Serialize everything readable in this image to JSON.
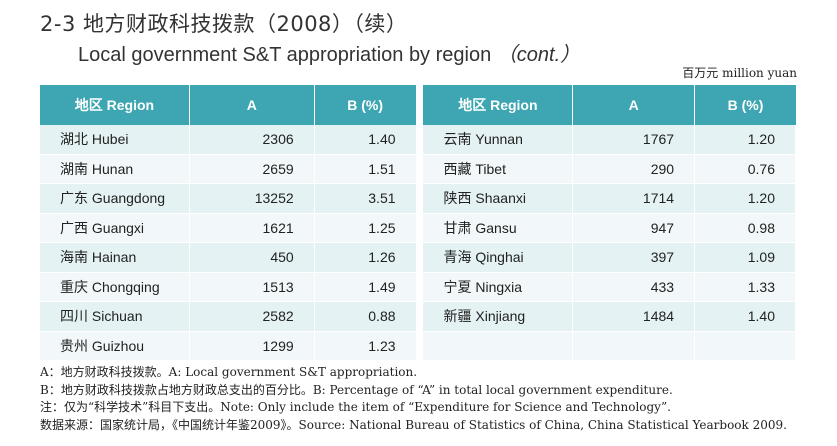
{
  "title_cn": "2-3 地方财政科技拨款（2008）（续）",
  "title_en": "Local government S&T appropriation by region",
  "title_en_cont": "（cont.）",
  "unit": "百万元 million yuan",
  "headers": {
    "region": "地区 Region",
    "a": "A",
    "b": "B (%)"
  },
  "left_rows": [
    {
      "region": "湖北 Hubei",
      "a": "2306",
      "b": "1.40"
    },
    {
      "region": "湖南 Hunan",
      "a": "2659",
      "b": "1.51"
    },
    {
      "region": "广东 Guangdong",
      "a": "13252",
      "b": "3.51"
    },
    {
      "region": "广西 Guangxi",
      "a": "1621",
      "b": "1.25"
    },
    {
      "region": "海南 Hainan",
      "a": "450",
      "b": "1.26"
    },
    {
      "region": "重庆 Chongqing",
      "a": "1513",
      "b": "1.49"
    },
    {
      "region": "四川 Sichuan",
      "a": "2582",
      "b": "0.88"
    },
    {
      "region": "贵州 Guizhou",
      "a": "1299",
      "b": "1.23"
    }
  ],
  "right_rows": [
    {
      "region": "云南 Yunnan",
      "a": "1767",
      "b": "1.20"
    },
    {
      "region": "西藏 Tibet",
      "a": "290",
      "b": "0.76"
    },
    {
      "region": "陕西 Shaanxi",
      "a": "1714",
      "b": "1.20"
    },
    {
      "region": "甘肃 Gansu",
      "a": "947",
      "b": "0.98"
    },
    {
      "region": "青海 Qinghai",
      "a": "397",
      "b": "1.09"
    },
    {
      "region": "宁夏 Ningxia",
      "a": "433",
      "b": "1.33"
    },
    {
      "region": "新疆 Xinjiang",
      "a": "1484",
      "b": "1.40"
    }
  ],
  "notes": [
    "A：地方财政科技拨款。A: Local government S&T appropriation.",
    "B：地方财政科技拨款占地方财政总支出的百分比。B: Percentage of “A” in total local government expenditure.",
    "注：仅为“科学技术”科目下支出。Note: Only include the item of “Expenditure for Science and Technology”.",
    "数据来源：国家统计局，《中国统计年鉴2009》。Source: National Bureau of Statistics of China, China Statistical Yearbook 2009."
  ]
}
